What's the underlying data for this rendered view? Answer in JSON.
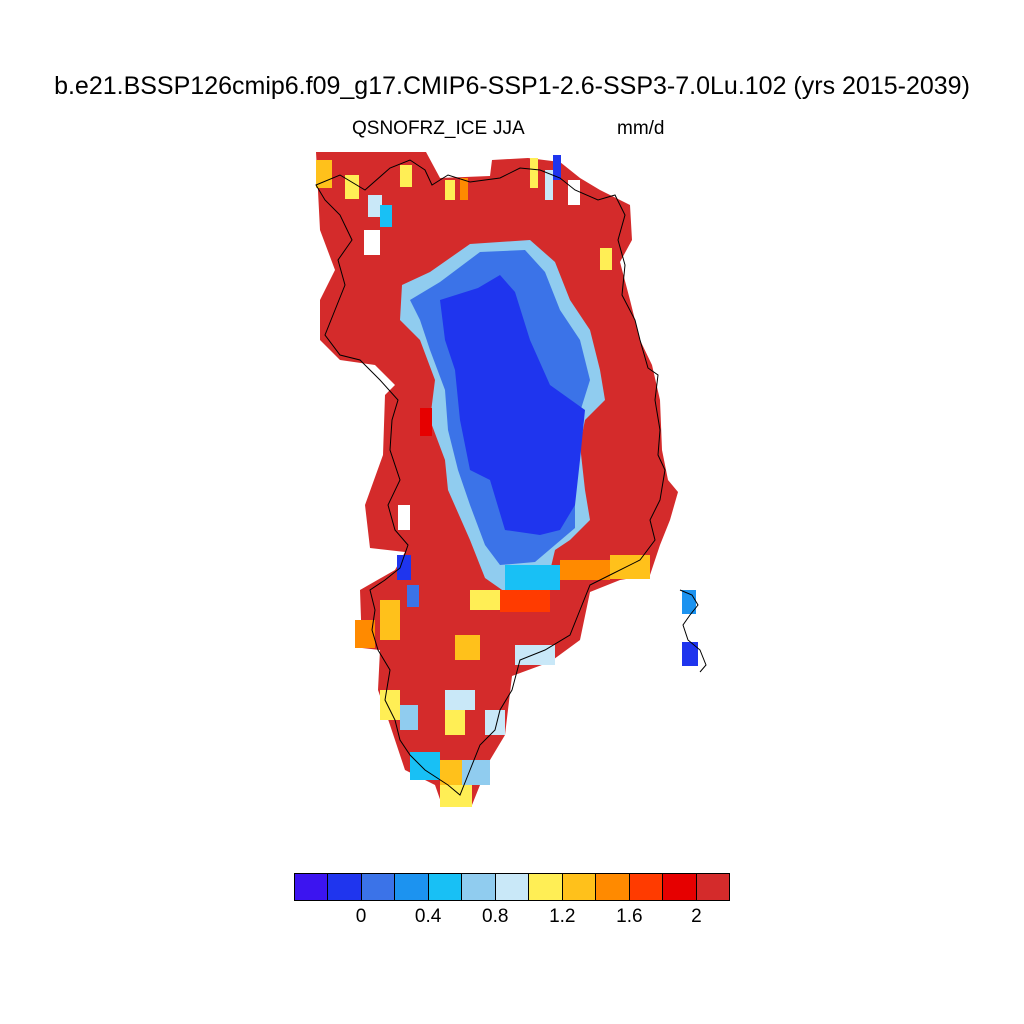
{
  "title": "b.e21.BSSP126cmip6.f09_g17.CMIP6-SSP1-2.6-SSP3-7.0Lu.102 (yrs 2015-2039)",
  "left_label": "QSNOFRZ_ICE",
  "center_label": "JJA",
  "right_label": "mm/d",
  "colorbar": {
    "colors": [
      "#3c14f0",
      "#1f35ee",
      "#3b73e8",
      "#1c93f0",
      "#18c0f5",
      "#90ccef",
      "#c9e8f8",
      "#ffee55",
      "#ffc11b",
      "#ff8a00",
      "#ff3b00",
      "#e60000",
      "#d42b2b"
    ],
    "tick_labels": [
      "0",
      "0.4",
      "0.8",
      "1.2",
      "1.6",
      "2"
    ]
  },
  "map": {
    "region": "Greenland",
    "interior_color": "#1f35ee",
    "coastal_color": "#d42b2b"
  }
}
